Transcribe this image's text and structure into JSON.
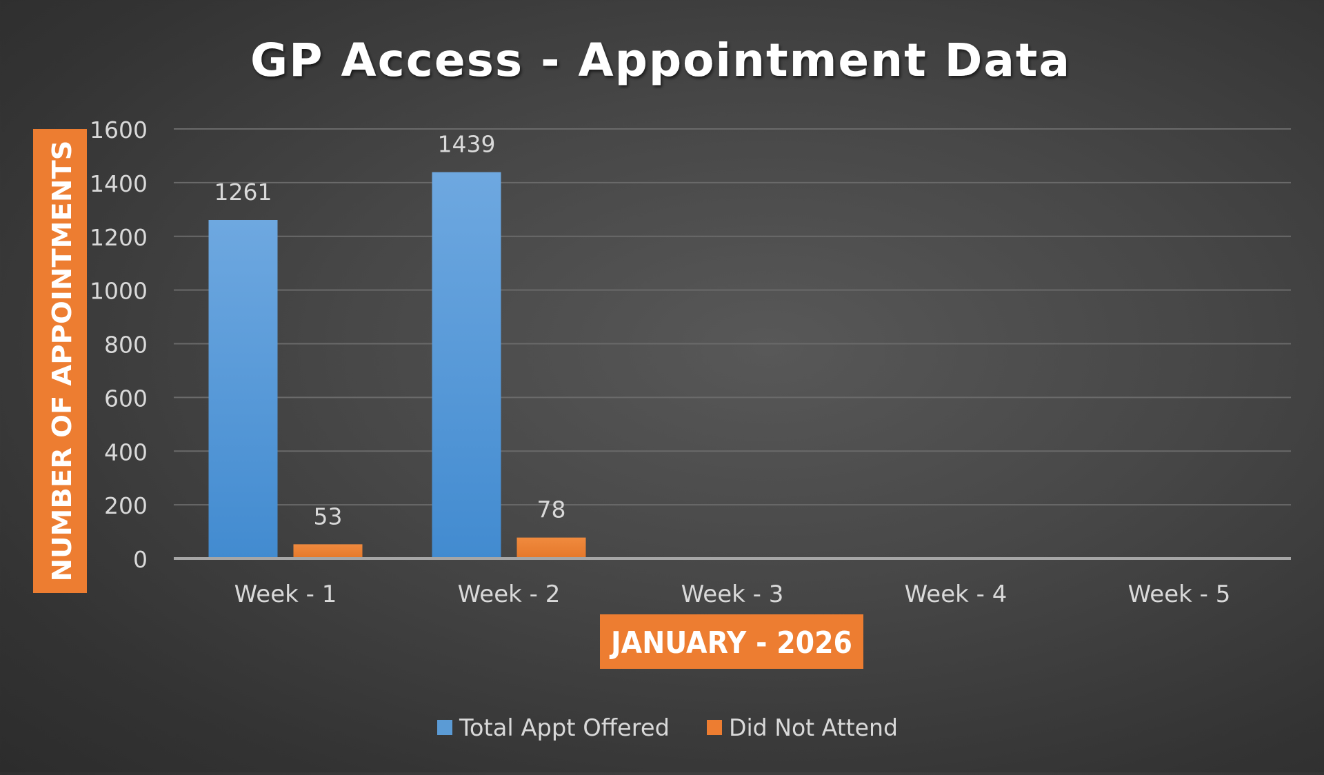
{
  "chart_data": {
    "type": "bar",
    "title": "GP Access - Appointment Data",
    "xlabel": "JANUARY - 2026",
    "ylabel": "NUMBER OF APPOINTMENTS",
    "categories": [
      "Week - 1",
      "Week - 2",
      "Week - 3",
      "Week - 4",
      "Week - 5"
    ],
    "series": [
      {
        "name": "Total Appt Offered",
        "values": [
          1261,
          1439,
          null,
          null,
          null
        ],
        "color": "#5b9bd5"
      },
      {
        "name": "Did Not Attend",
        "values": [
          53,
          78,
          null,
          null,
          null
        ],
        "color": "#ed7d31"
      }
    ],
    "ylim": [
      0,
      1600
    ],
    "yticks": [
      0,
      200,
      400,
      600,
      800,
      1000,
      1200,
      1400,
      1600
    ],
    "grid": true,
    "legend_position": "bottom",
    "data_labels": true,
    "colors": {
      "label_box": "#ed7d31",
      "text": "#d9d9d9",
      "title": "#ffffff",
      "gridline": "#6a6a6a",
      "axis": "#a6a6a6"
    }
  }
}
